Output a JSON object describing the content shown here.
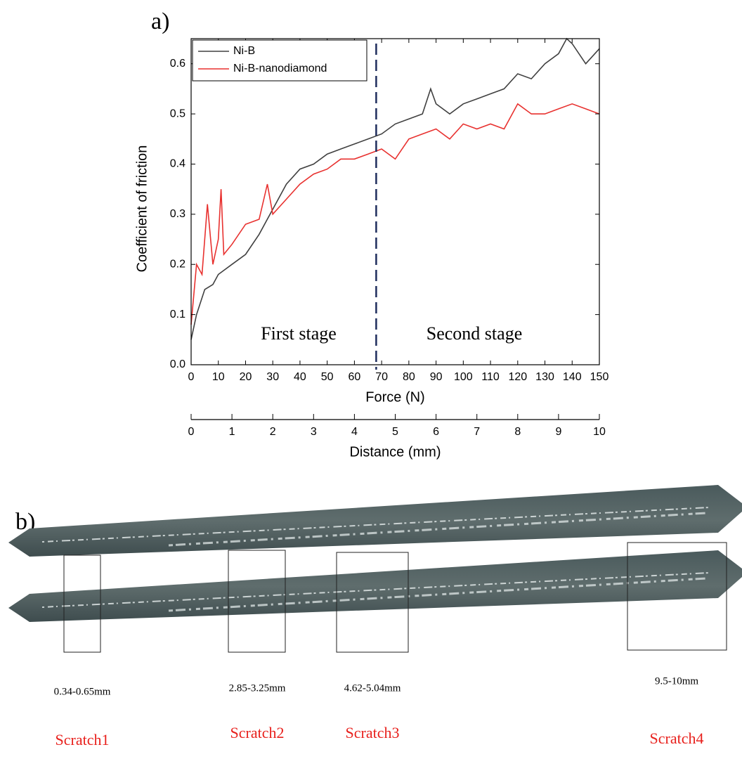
{
  "panel_a_label": "a)",
  "chart_data": {
    "type": "line",
    "xlabel": "Force (N)",
    "ylabel": "Coefficient of friction",
    "xlim": [
      0,
      150
    ],
    "xticks": [
      0,
      10,
      20,
      30,
      40,
      50,
      60,
      70,
      80,
      90,
      100,
      110,
      120,
      130,
      140,
      150
    ],
    "ylim": [
      0,
      0.65
    ],
    "yticks": [
      {
        "value": 0,
        "label": "0.0"
      },
      0.1,
      0.2,
      0.3,
      0.4,
      0.5,
      0.6
    ],
    "x2label": "Distance (mm)",
    "x2lim": [
      0,
      10
    ],
    "x2ticks": [
      0,
      1,
      2,
      3,
      4,
      5,
      6,
      7,
      8,
      9,
      10
    ],
    "legend": "top-left",
    "divider": {
      "x": 68,
      "color": "#1f2d5c"
    },
    "annotations": [
      "First stage",
      "Second stage"
    ],
    "series": [
      {
        "name": "Ni-B",
        "color": "#404040",
        "x": [
          0,
          2,
          5,
          8,
          10,
          15,
          20,
          25,
          30,
          35,
          40,
          45,
          50,
          55,
          60,
          65,
          70,
          75,
          80,
          85,
          88,
          90,
          95,
          100,
          105,
          110,
          115,
          120,
          125,
          130,
          135,
          138,
          140,
          145,
          150
        ],
        "values": [
          0.05,
          0.1,
          0.15,
          0.16,
          0.18,
          0.2,
          0.22,
          0.26,
          0.31,
          0.36,
          0.39,
          0.4,
          0.42,
          0.43,
          0.44,
          0.45,
          0.46,
          0.48,
          0.49,
          0.5,
          0.55,
          0.52,
          0.5,
          0.52,
          0.53,
          0.54,
          0.55,
          0.58,
          0.57,
          0.6,
          0.62,
          0.65,
          0.64,
          0.6,
          0.63
        ]
      },
      {
        "name": "Ni-B-nanodiamond",
        "color": "#e8312f",
        "x": [
          0,
          2,
          4,
          6,
          8,
          10,
          11,
          12,
          15,
          20,
          25,
          28,
          30,
          35,
          40,
          45,
          50,
          55,
          60,
          65,
          70,
          75,
          80,
          85,
          90,
          95,
          100,
          105,
          110,
          115,
          120,
          125,
          130,
          135,
          140,
          145,
          150
        ],
        "values": [
          0.08,
          0.2,
          0.18,
          0.32,
          0.2,
          0.25,
          0.35,
          0.22,
          0.24,
          0.28,
          0.29,
          0.36,
          0.3,
          0.33,
          0.36,
          0.38,
          0.39,
          0.41,
          0.41,
          0.42,
          0.43,
          0.41,
          0.45,
          0.46,
          0.47,
          0.45,
          0.48,
          0.47,
          0.48,
          0.47,
          0.52,
          0.5,
          0.5,
          0.51,
          0.52,
          0.51,
          0.5
        ]
      }
    ]
  },
  "photo": {
    "label": "b)",
    "scratches": [
      {
        "range": "0.34-0.65mm",
        "name": "Scratch1"
      },
      {
        "range": "2.85-3.25mm",
        "name": "Scratch2"
      },
      {
        "range": "4.62-5.04mm",
        "name": "Scratch3"
      },
      {
        "range": "9.5-10mm",
        "name": "Scratch4"
      }
    ]
  }
}
